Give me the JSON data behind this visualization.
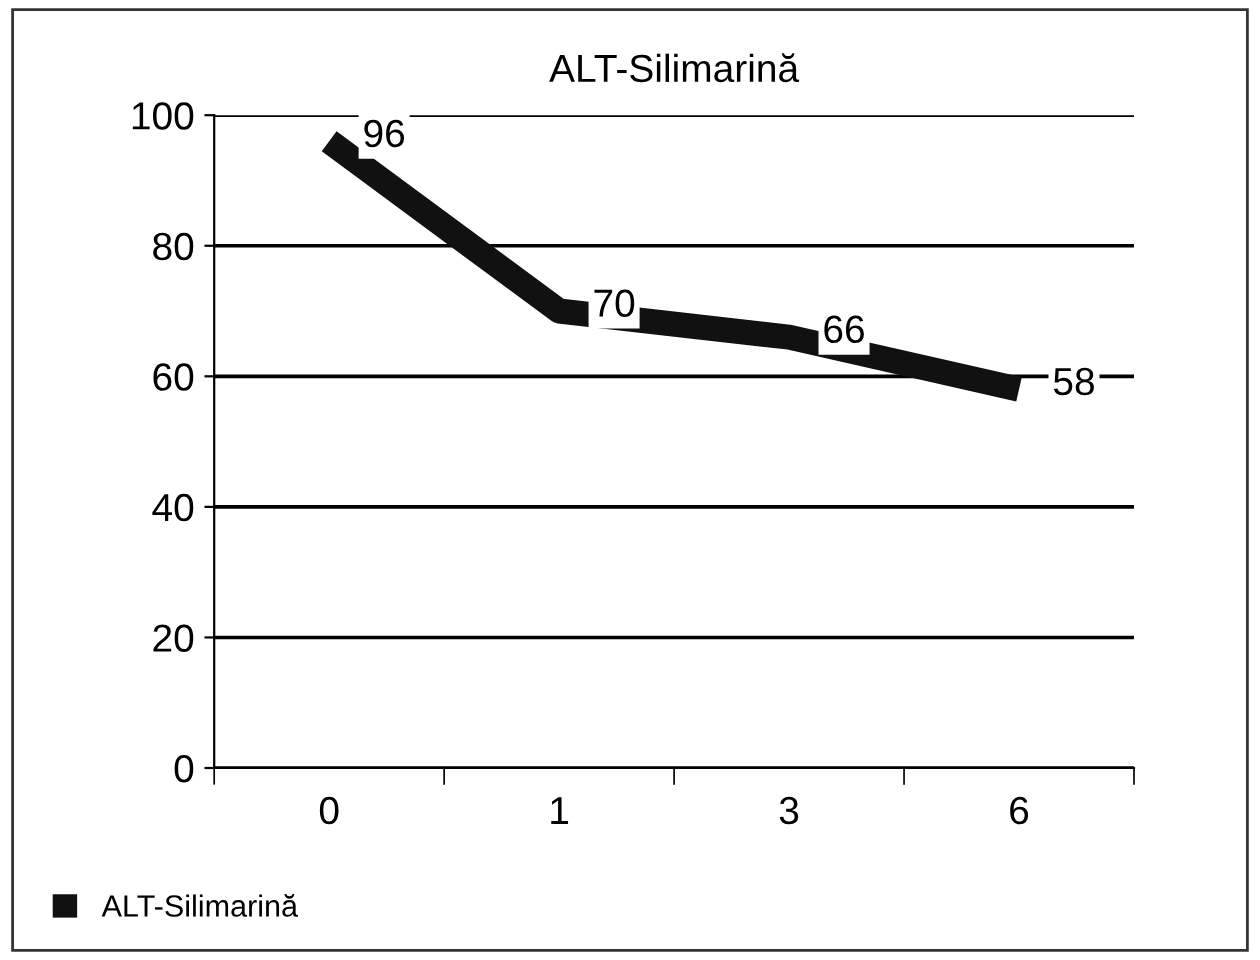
{
  "chart_data": {
    "type": "line",
    "title": "ALT-Silimarină",
    "categories": [
      "0",
      "1",
      "3",
      "6"
    ],
    "series": [
      {
        "name": "ALT-Silimarină",
        "color": "#111111",
        "values": [
          96,
          70,
          66,
          58
        ]
      }
    ],
    "ylim": [
      0,
      100
    ],
    "yticks": [
      0,
      20,
      40,
      60,
      80,
      100
    ],
    "grid": "y",
    "legend": "bottom left",
    "data_labels": true,
    "marker": "none",
    "line_style": "solid"
  }
}
